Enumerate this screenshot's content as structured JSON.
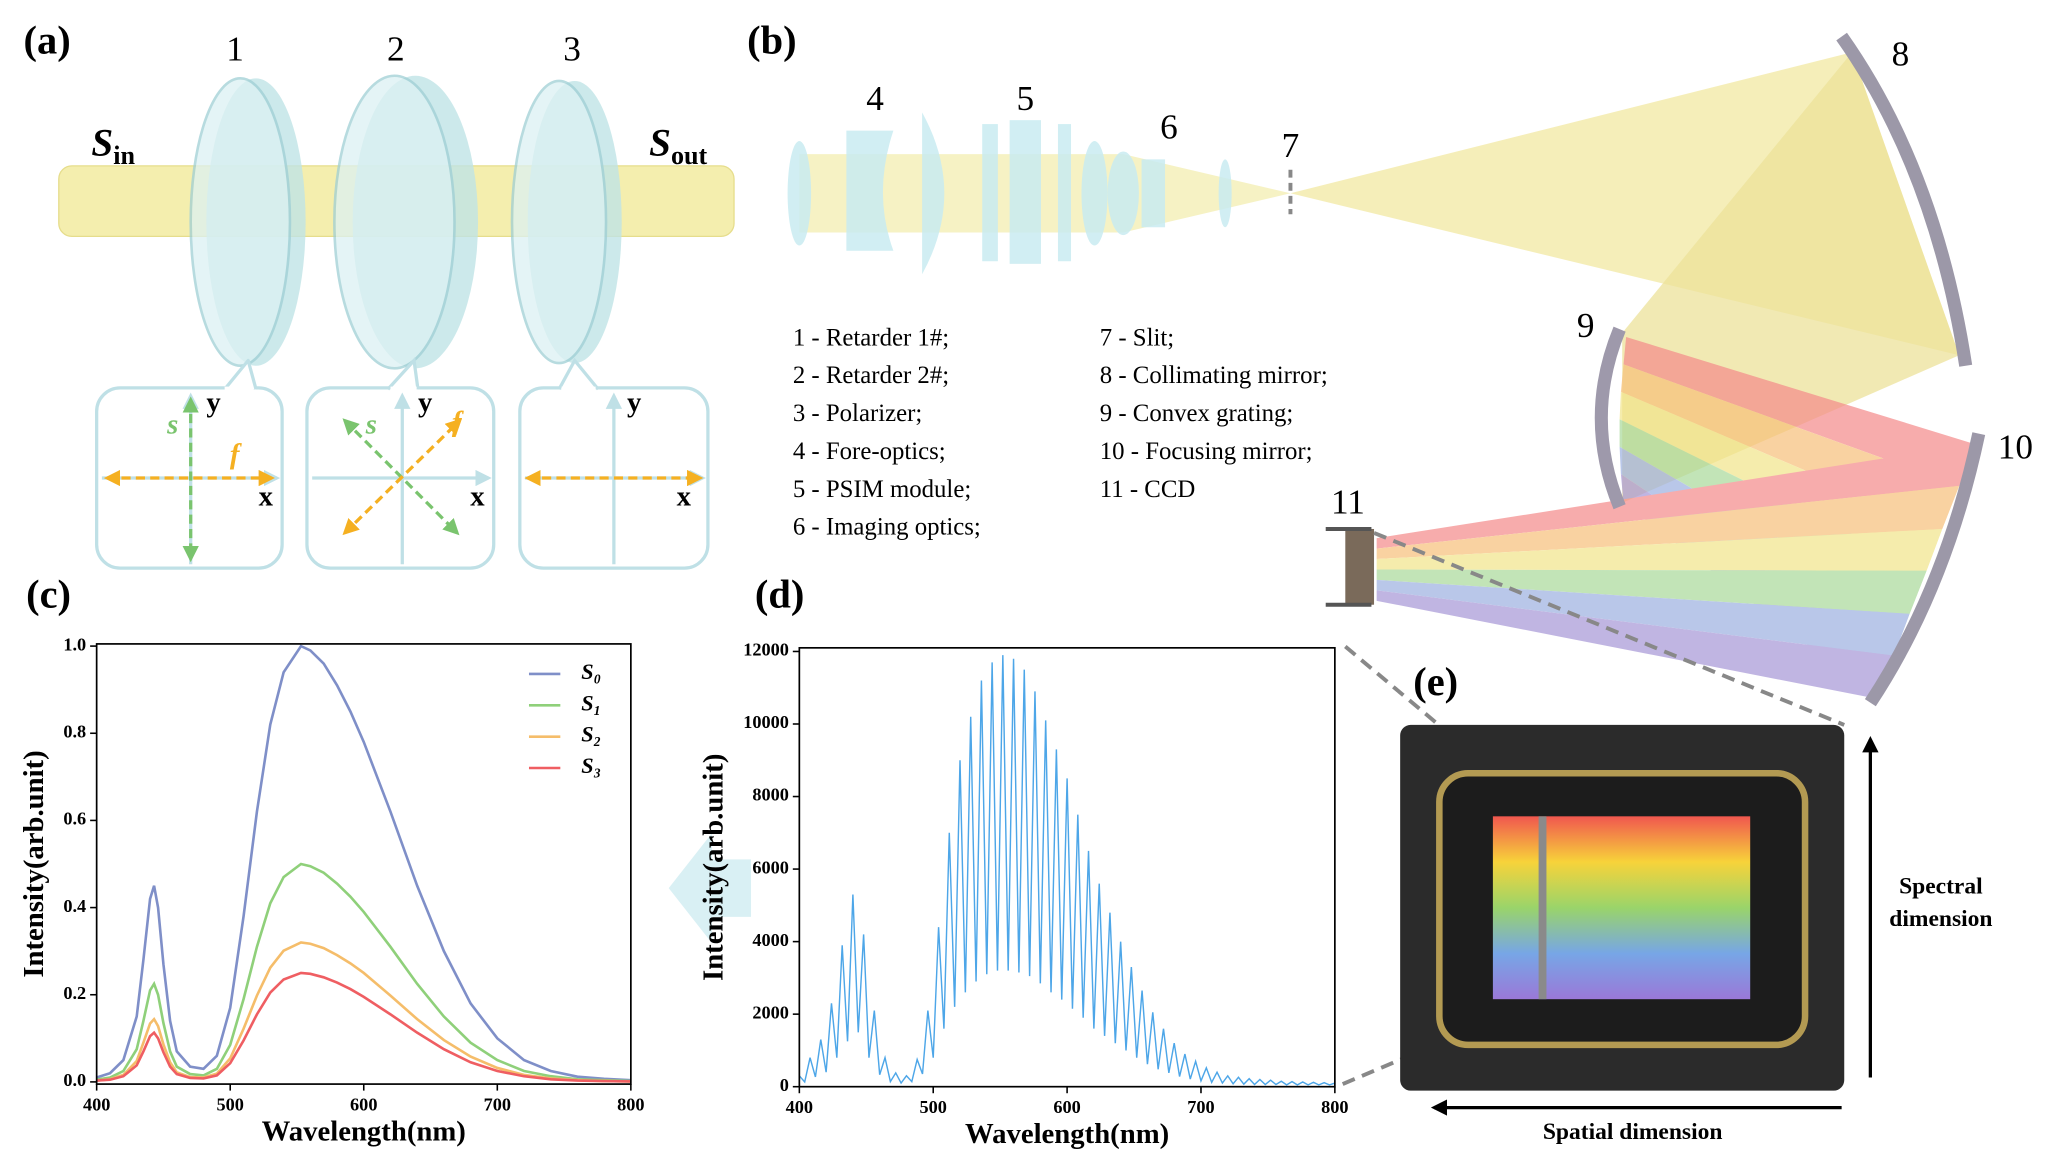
{
  "panel_labels": [
    "(a)",
    "(b)",
    "(c)",
    "(d)",
    "(e)"
  ],
  "panel_a": {
    "numbers": [
      "1",
      "2",
      "3"
    ],
    "s_in": {
      "symbol": "S",
      "subscript": "in"
    },
    "s_out": {
      "symbol": "S",
      "subscript": "out"
    },
    "insets": [
      {
        "x": "x",
        "y": "y",
        "slow": "s",
        "fast": "f"
      },
      {
        "x": "x",
        "y": "y",
        "slow": "s",
        "fast": "f"
      },
      {
        "x": "x",
        "y": "y"
      }
    ]
  },
  "panel_b": {
    "numbers": [
      "4",
      "5",
      "6",
      "7",
      "8",
      "9",
      "10",
      "11"
    ],
    "legend": [
      "1 - Retarder 1#;",
      "2 - Retarder 2#;",
      "3 - Polarizer;",
      "4 - Fore-optics;",
      "5 - PSIM module;",
      "6 - Imaging optics;",
      "7 - Slit;",
      "8 - Collimating mirror;",
      "9 - Convex grating;",
      "10 - Focusing mirror;",
      "11 - CCD"
    ]
  },
  "panel_e": {
    "vertical_label": [
      "Spectral",
      "dimension"
    ],
    "horizontal_label": "Spatial dimension"
  },
  "chart_data": [
    {
      "type": "line",
      "x_label": "Wavelength(nm)",
      "y_label": "Intensity(arb.unit)",
      "legend": "upper right",
      "xlim": [
        400,
        800
      ],
      "xticks": [
        400,
        500,
        600,
        700,
        800
      ],
      "ylim": [
        -0.005,
        1.005
      ],
      "yticks": [
        {
          "value": 0,
          "label": "0.0"
        },
        0.2,
        0.4,
        0.6,
        0.8,
        {
          "value": 1,
          "label": "1.0"
        }
      ],
      "x": [
        400,
        410,
        420,
        430,
        435,
        440,
        443,
        446,
        450,
        455,
        460,
        470,
        480,
        490,
        500,
        510,
        520,
        530,
        540,
        553,
        560,
        570,
        580,
        590,
        600,
        620,
        640,
        660,
        680,
        700,
        720,
        740,
        760,
        780,
        800
      ],
      "series": [
        {
          "name": "S₀",
          "color": "#7f8fc8",
          "values": [
            0.01,
            0.02,
            0.05,
            0.15,
            0.28,
            0.42,
            0.45,
            0.4,
            0.27,
            0.14,
            0.07,
            0.035,
            0.03,
            0.06,
            0.17,
            0.38,
            0.62,
            0.82,
            0.94,
            1.0,
            0.99,
            0.96,
            0.91,
            0.85,
            0.78,
            0.62,
            0.45,
            0.3,
            0.18,
            0.1,
            0.05,
            0.025,
            0.012,
            0.007,
            0.004
          ]
        },
        {
          "name": "S₁",
          "color": "#8fd07a",
          "values": [
            0.005,
            0.01,
            0.025,
            0.075,
            0.14,
            0.21,
            0.225,
            0.2,
            0.135,
            0.07,
            0.035,
            0.018,
            0.015,
            0.03,
            0.085,
            0.19,
            0.31,
            0.41,
            0.47,
            0.5,
            0.495,
            0.48,
            0.455,
            0.425,
            0.39,
            0.31,
            0.225,
            0.15,
            0.09,
            0.05,
            0.025,
            0.013,
            0.006,
            0.004,
            0.002
          ]
        },
        {
          "name": "S₂",
          "color": "#f5bd6a",
          "values": [
            0.003,
            0.006,
            0.016,
            0.048,
            0.09,
            0.134,
            0.144,
            0.128,
            0.086,
            0.045,
            0.022,
            0.011,
            0.01,
            0.019,
            0.054,
            0.122,
            0.198,
            0.262,
            0.301,
            0.32,
            0.317,
            0.307,
            0.291,
            0.272,
            0.25,
            0.198,
            0.144,
            0.096,
            0.058,
            0.032,
            0.016,
            0.008,
            0.004,
            0.002,
            0.001
          ]
        },
        {
          "name": "S₃",
          "color": "#ef5e62",
          "values": [
            0.003,
            0.005,
            0.013,
            0.038,
            0.07,
            0.105,
            0.113,
            0.1,
            0.068,
            0.035,
            0.018,
            0.009,
            0.008,
            0.015,
            0.043,
            0.095,
            0.155,
            0.205,
            0.235,
            0.25,
            0.248,
            0.24,
            0.228,
            0.213,
            0.195,
            0.155,
            0.113,
            0.075,
            0.045,
            0.025,
            0.013,
            0.006,
            0.003,
            0.002,
            0.001
          ]
        }
      ]
    },
    {
      "type": "line",
      "x_label": "Wavelength(nm)",
      "y_label": "Intensity(arb.unit)",
      "xlim": [
        400,
        800
      ],
      "xticks": [
        400,
        500,
        600,
        700,
        800
      ],
      "ylim": [
        0,
        12100
      ],
      "yticks": [
        0,
        2000,
        4000,
        6000,
        8000,
        10000,
        12000
      ],
      "x": [
        400,
        404,
        408,
        412,
        416,
        420,
        424,
        428,
        432,
        436,
        440,
        444,
        448,
        452,
        456,
        460,
        464,
        468,
        472,
        476,
        480,
        484,
        488,
        492,
        496,
        500,
        504,
        508,
        512,
        516,
        520,
        524,
        528,
        532,
        536,
        540,
        544,
        548,
        552,
        556,
        560,
        564,
        568,
        572,
        576,
        580,
        584,
        588,
        592,
        596,
        600,
        604,
        608,
        612,
        616,
        620,
        624,
        628,
        632,
        636,
        640,
        644,
        648,
        652,
        656,
        660,
        664,
        668,
        672,
        676,
        680,
        684,
        688,
        692,
        696,
        700,
        704,
        708,
        712,
        716,
        720,
        724,
        728,
        732,
        736,
        740,
        744,
        748,
        752,
        756,
        760,
        764,
        768,
        772,
        776,
        780,
        784,
        788,
        792,
        796,
        800
      ],
      "series": [
        {
          "color": "#4da6e8",
          "values": [
            300,
            130,
            800,
            270,
            1300,
            400,
            2300,
            800,
            3900,
            1250,
            5300,
            1500,
            4200,
            800,
            2100,
            330,
            800,
            140,
            380,
            100,
            300,
            140,
            750,
            350,
            2100,
            800,
            4400,
            1600,
            7000,
            2200,
            9000,
            2600,
            10200,
            2900,
            11200,
            3100,
            11700,
            3200,
            11900,
            3200,
            11800,
            3150,
            11500,
            3050,
            10900,
            2850,
            10100,
            2600,
            9300,
            2400,
            8500,
            2150,
            7500,
            1900,
            6500,
            1600,
            5600,
            1400,
            4800,
            1200,
            4000,
            1000,
            3300,
            800,
            2650,
            620,
            2050,
            480,
            1600,
            380,
            1200,
            280,
            900,
            210,
            700,
            160,
            520,
            120,
            400,
            100,
            300,
            80,
            260,
            70,
            220,
            60,
            200,
            60,
            180,
            60,
            150,
            50,
            140,
            50,
            130,
            50,
            120,
            50,
            110,
            50,
            100
          ]
        }
      ]
    }
  ]
}
